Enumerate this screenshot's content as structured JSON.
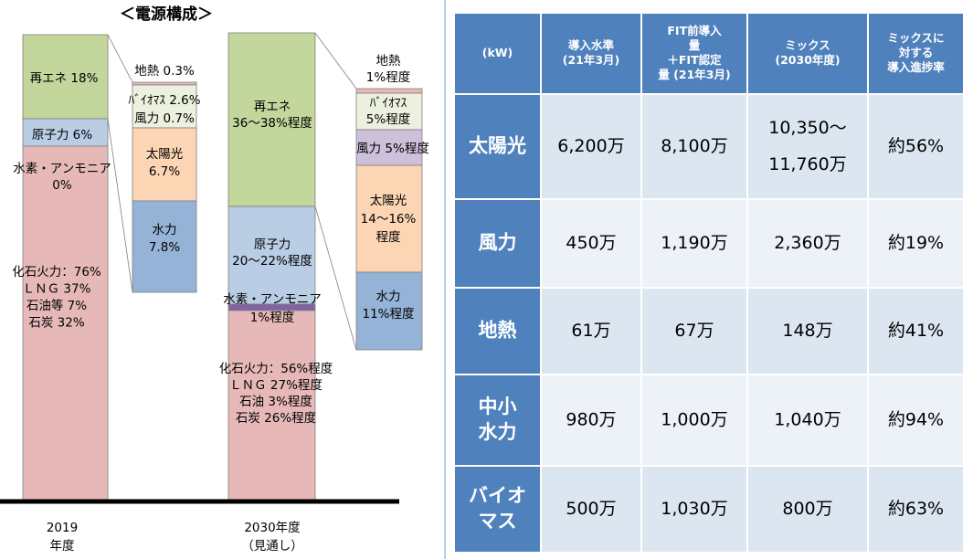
{
  "diagram": {
    "title": "＜電源構成＞",
    "x_labels": [
      [
        "2019",
        "年度"
      ],
      [
        "2030年度",
        "（見通し）"
      ]
    ],
    "labels_2019": [
      [
        "再エネ 18%"
      ],
      [
        "原子力 6%"
      ],
      [
        "水素・アンモニア",
        "0%"
      ],
      [
        "化石火力：76%",
        "ＬＮＧ 37%",
        "石油等 7%",
        "石炭 32%"
      ]
    ],
    "detail_2019": [
      [
        "地熱 0.3%"
      ],
      [
        "ﾊﾞｲｵﾏｽ 2.6%"
      ],
      [
        "風力 0.7%"
      ],
      [
        "太陽光",
        "6.7%"
      ],
      [
        "水力",
        "7.8%"
      ]
    ],
    "labels_2030": [
      [
        "再エネ",
        "36～38%程度"
      ],
      [
        "原子力",
        "20～22%程度"
      ],
      [
        "水素・アンモニア",
        "1%程度"
      ],
      [
        "化石火力：56%程度",
        "ＬＮＧ 27%程度",
        "石油 3%程度",
        "石炭 26%程度"
      ]
    ],
    "detail_2030": [
      [
        "地熱",
        "1%程度"
      ],
      [
        "ﾊﾞｲｵﾏｽ",
        "5%程度"
      ],
      [
        "風力 5%程度"
      ],
      [
        "太陽光",
        "14～16%",
        "程度"
      ],
      [
        "水力",
        "11%程度"
      ]
    ]
  },
  "table": {
    "header": [
      [
        "(kW)"
      ],
      [
        "導入水準",
        "(21年3月)"
      ],
      [
        "FIT前導入",
        "量",
        "＋FIT認定",
        "量 (21年3月)"
      ],
      [
        "ミックス",
        "(2030年度)"
      ],
      [
        "ミックスに",
        "対する",
        "導入進捗率"
      ]
    ],
    "rows": [
      [
        [
          "太陽光"
        ],
        [
          "6,200万"
        ],
        [
          "8,100万"
        ],
        [
          "10,350～",
          "11,760万"
        ],
        [
          "約56%"
        ]
      ],
      [
        [
          "風力"
        ],
        [
          "450万"
        ],
        [
          "1,190万"
        ],
        [
          "2,360万"
        ],
        [
          "約19%"
        ]
      ],
      [
        [
          "地熱"
        ],
        [
          "61万"
        ],
        [
          "67万"
        ],
        [
          "148万"
        ],
        [
          "約41%"
        ]
      ],
      [
        [
          "中小",
          "水力"
        ],
        [
          "980万"
        ],
        [
          "1,000万"
        ],
        [
          "1,040万"
        ],
        [
          "約94%"
        ]
      ],
      [
        [
          "バイオ",
          "マス"
        ],
        [
          "500万"
        ],
        [
          "1,030万"
        ],
        [
          "800万"
        ],
        [
          "約63%"
        ]
      ]
    ]
  }
}
